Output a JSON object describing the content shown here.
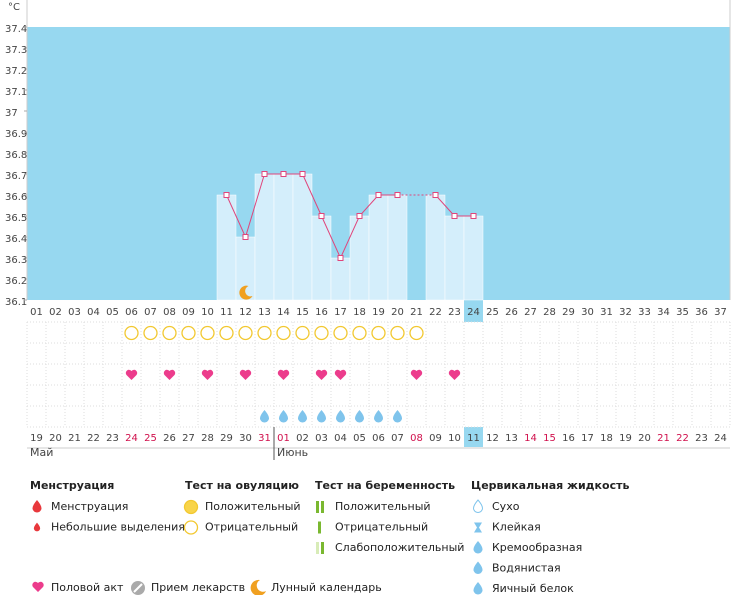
{
  "chart_data": {
    "type": "bar",
    "y_unit": "°C",
    "categories": [
      "01",
      "02",
      "03",
      "04",
      "05",
      "06",
      "07",
      "08",
      "09",
      "10",
      "11",
      "12",
      "13",
      "14",
      "15",
      "16",
      "17",
      "18",
      "19",
      "20",
      "21",
      "22",
      "23",
      "24",
      "25",
      "26",
      "27",
      "28",
      "29",
      "30",
      "31",
      "32",
      "33",
      "34",
      "35",
      "36",
      "37"
    ],
    "values": [
      null,
      null,
      null,
      null,
      null,
      null,
      null,
      null,
      null,
      null,
      36.6,
      36.4,
      36.7,
      36.7,
      36.7,
      36.5,
      36.3,
      36.5,
      36.6,
      36.6,
      null,
      36.6,
      36.5,
      36.5,
      null,
      null,
      null,
      null,
      null,
      null,
      null,
      null,
      null,
      null,
      null,
      null,
      null
    ],
    "ylim": [
      36.1,
      37.4
    ],
    "yticks": [
      36.1,
      36.2,
      36.3,
      36.4,
      36.5,
      36.6,
      36.7,
      36.8,
      36.9,
      37,
      37.1,
      37.2,
      37.3,
      37.4
    ],
    "background_color": "#97d8f0",
    "bar_color": "#d4eefb",
    "line_color": "#e0457b",
    "dates": [
      "19",
      "20",
      "21",
      "22",
      "23",
      "24",
      "25",
      "26",
      "27",
      "28",
      "29",
      "30",
      "31",
      "01",
      "02",
      "03",
      "04",
      "05",
      "06",
      "07",
      "08",
      "09",
      "10",
      "11",
      "12",
      "13",
      "14",
      "15",
      "16",
      "17",
      "18",
      "19",
      "20",
      "21",
      "22",
      "23",
      "24"
    ],
    "red_dates": [
      5,
      6,
      12,
      13,
      20,
      26,
      27,
      33,
      34
    ],
    "highlight_index": 23,
    "months": [
      {
        "label": "Май",
        "index": 0
      },
      {
        "label": "Июнь",
        "index": 13
      }
    ],
    "ovulation_negative_days": [
      6,
      7,
      8,
      9,
      10,
      11,
      12,
      13,
      14,
      15,
      16,
      17,
      18,
      19,
      20,
      21
    ],
    "intercourse_days": [
      6,
      8,
      10,
      12,
      14,
      16,
      17,
      21,
      23
    ],
    "fluid_days": [
      13,
      14,
      15,
      16,
      17,
      18,
      19,
      20
    ],
    "moon_days": [
      12
    ]
  },
  "legend": {
    "sections": [
      {
        "title": "Менструация",
        "items": [
          "Менструация",
          "Небольшие выделения"
        ]
      },
      {
        "title": "Тест на овуляцию",
        "items": [
          "Положительный",
          "Отрицательный"
        ]
      },
      {
        "title": "Тест на беременность",
        "items": [
          "Положительный",
          "Отрицательный",
          "Слабоположительный"
        ]
      },
      {
        "title": "Цервикальная жидкость",
        "items": [
          "Сухо",
          "Клейкая",
          "Кремообразная",
          "Водянистая",
          "Яичный белок"
        ]
      }
    ],
    "bottom": [
      "Половой акт",
      "Прием лекарств",
      "Лунный календарь"
    ]
  }
}
